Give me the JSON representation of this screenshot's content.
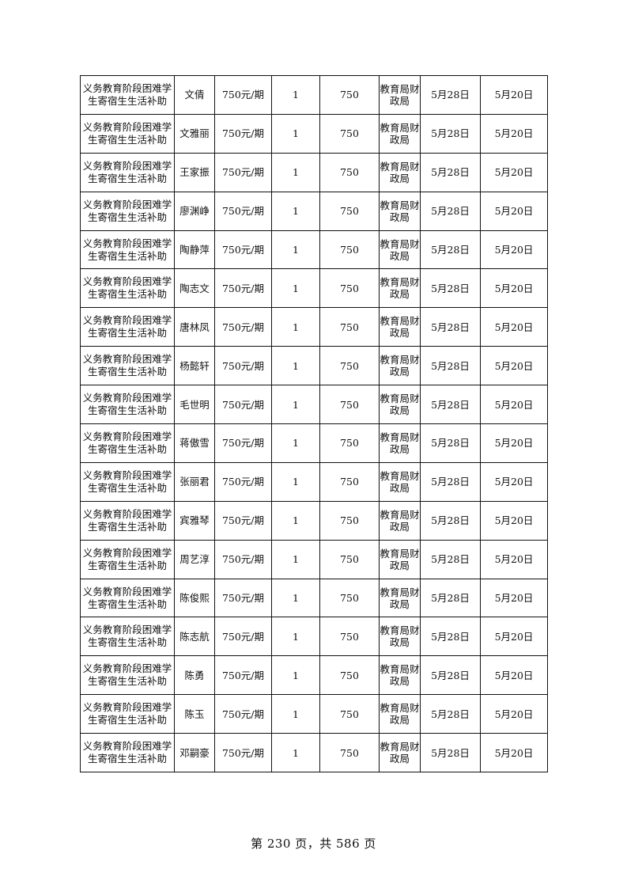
{
  "table": {
    "rows": [
      {
        "project": "义务教育阶段困难学生寄宿生生活补助",
        "name": "文倩",
        "standard": "750元/期",
        "count": "1",
        "amount": "750",
        "dept": "教育局财政局",
        "date1": "5月28日",
        "date2": "5月20日"
      },
      {
        "project": "义务教育阶段困难学生寄宿生生活补助",
        "name": "文雅丽",
        "standard": "750元/期",
        "count": "1",
        "amount": "750",
        "dept": "教育局财政局",
        "date1": "5月28日",
        "date2": "5月20日"
      },
      {
        "project": "义务教育阶段困难学生寄宿生生活补助",
        "name": "王家振",
        "standard": "750元/期",
        "count": "1",
        "amount": "750",
        "dept": "教育局财政局",
        "date1": "5月28日",
        "date2": "5月20日"
      },
      {
        "project": "义务教育阶段困难学生寄宿生生活补助",
        "name": "廖渊峥",
        "standard": "750元/期",
        "count": "1",
        "amount": "750",
        "dept": "教育局财政局",
        "date1": "5月28日",
        "date2": "5月20日"
      },
      {
        "project": "义务教育阶段困难学生寄宿生生活补助",
        "name": "陶静萍",
        "standard": "750元/期",
        "count": "1",
        "amount": "750",
        "dept": "教育局财政局",
        "date1": "5月28日",
        "date2": "5月20日"
      },
      {
        "project": "义务教育阶段困难学生寄宿生生活补助",
        "name": "陶志文",
        "standard": "750元/期",
        "count": "1",
        "amount": "750",
        "dept": "教育局财政局",
        "date1": "5月28日",
        "date2": "5月20日"
      },
      {
        "project": "义务教育阶段困难学生寄宿生生活补助",
        "name": "唐林凤",
        "standard": "750元/期",
        "count": "1",
        "amount": "750",
        "dept": "教育局财政局",
        "date1": "5月28日",
        "date2": "5月20日"
      },
      {
        "project": "义务教育阶段困难学生寄宿生生活补助",
        "name": "杨懿轩",
        "standard": "750元/期",
        "count": "1",
        "amount": "750",
        "dept": "教育局财政局",
        "date1": "5月28日",
        "date2": "5月20日"
      },
      {
        "project": "义务教育阶段困难学生寄宿生生活补助",
        "name": "毛世明",
        "standard": "750元/期",
        "count": "1",
        "amount": "750",
        "dept": "教育局财政局",
        "date1": "5月28日",
        "date2": "5月20日"
      },
      {
        "project": "义务教育阶段困难学生寄宿生生活补助",
        "name": "蒋傲雪",
        "standard": "750元/期",
        "count": "1",
        "amount": "750",
        "dept": "教育局财政局",
        "date1": "5月28日",
        "date2": "5月20日"
      },
      {
        "project": "义务教育阶段困难学生寄宿生生活补助",
        "name": "张丽君",
        "standard": "750元/期",
        "count": "1",
        "amount": "750",
        "dept": "教育局财政局",
        "date1": "5月28日",
        "date2": "5月20日"
      },
      {
        "project": "义务教育阶段困难学生寄宿生生活补助",
        "name": "宾雅琴",
        "standard": "750元/期",
        "count": "1",
        "amount": "750",
        "dept": "教育局财政局",
        "date1": "5月28日",
        "date2": "5月20日"
      },
      {
        "project": "义务教育阶段困难学生寄宿生生活补助",
        "name": "周艺淳",
        "standard": "750元/期",
        "count": "1",
        "amount": "750",
        "dept": "教育局财政局",
        "date1": "5月28日",
        "date2": "5月20日"
      },
      {
        "project": "义务教育阶段困难学生寄宿生生活补助",
        "name": "陈俊熙",
        "standard": "750元/期",
        "count": "1",
        "amount": "750",
        "dept": "教育局财政局",
        "date1": "5月28日",
        "date2": "5月20日"
      },
      {
        "project": "义务教育阶段困难学生寄宿生生活补助",
        "name": "陈志航",
        "standard": "750元/期",
        "count": "1",
        "amount": "750",
        "dept": "教育局财政局",
        "date1": "5月28日",
        "date2": "5月20日"
      },
      {
        "project": "义务教育阶段困难学生寄宿生生活补助",
        "name": "陈勇",
        "standard": "750元/期",
        "count": "1",
        "amount": "750",
        "dept": "教育局财政局",
        "date1": "5月28日",
        "date2": "5月20日"
      },
      {
        "project": "义务教育阶段困难学生寄宿生生活补助",
        "name": "陈玉",
        "standard": "750元/期",
        "count": "1",
        "amount": "750",
        "dept": "教育局财政局",
        "date1": "5月28日",
        "date2": "5月20日"
      },
      {
        "project": "义务教育阶段困难学生寄宿生生活补助",
        "name": "邓嗣豪",
        "standard": "750元/期",
        "count": "1",
        "amount": "750",
        "dept": "教育局财政局",
        "date1": "5月28日",
        "date2": "5月20日"
      }
    ]
  },
  "footer": {
    "page_label": "第 230 页，共 586 页"
  }
}
